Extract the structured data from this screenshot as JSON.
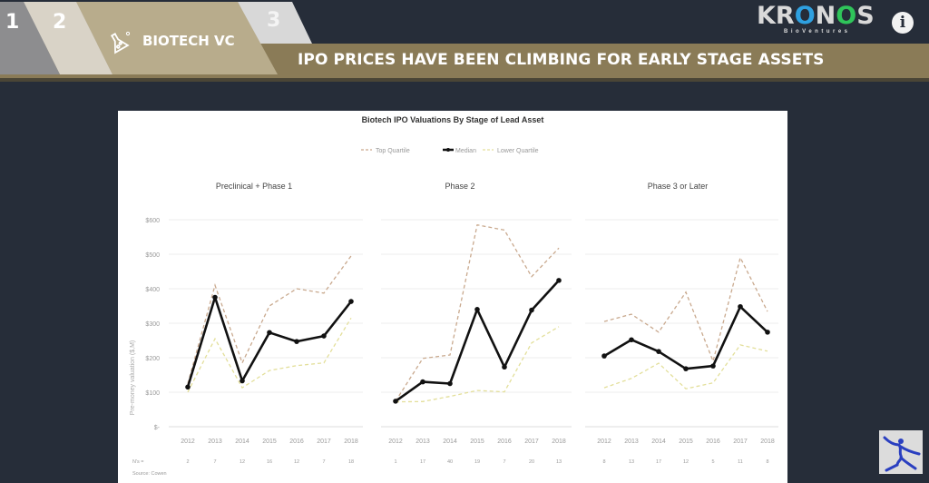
{
  "header": {
    "steps": [
      {
        "label": "1",
        "color": "#8d8d8f"
      },
      {
        "label": "2",
        "color": "#d9d3c7"
      },
      {
        "label": "BIOTECH VC",
        "color": "#b8ac8c",
        "icon": "flask-icon"
      },
      {
        "label": "3",
        "color": "#d8d8d8"
      }
    ],
    "logo": {
      "word_parts": [
        "KR",
        "O",
        "N",
        "O",
        "S"
      ],
      "word_colors": [
        "#d9d9d9",
        "#2ea0e0",
        "#d9d9d9",
        "#2fc45a",
        "#d9d9d9"
      ],
      "subtitle": "BioVentures"
    },
    "info_icon": "i",
    "banner_title": "IPO PRICES HAVE BEEN CLIMBING FOR EARLY STAGE ASSETS",
    "banner_color": "#8a7b57"
  },
  "colors": {
    "top_quartile": "#c9a98e",
    "median": "#111111",
    "lower_quartile": "#e3df9a",
    "background": "#262d39"
  },
  "chart_data": {
    "type": "line",
    "title": "Biotech IPO Valuations By Stage of Lead Asset",
    "legend": [
      "Top Quartile",
      "Median",
      "Lower Quartile"
    ],
    "legend_position": "top",
    "ylabel": "Pre-money valuation ($,M)",
    "yticks": [
      "$-",
      "$100",
      "$200",
      "$300",
      "$400",
      "$500",
      "$600"
    ],
    "ylim": [
      0,
      600
    ],
    "grid": true,
    "n_label": "N's =",
    "source": "Source: Cowen",
    "panels": [
      {
        "title": "Preclinical + Phase 1",
        "categories": [
          "2012",
          "2013",
          "2014",
          "2015",
          "2016",
          "2017",
          "2018"
        ],
        "n": [
          "2",
          "7",
          "12",
          "16",
          "12",
          "7",
          "18"
        ],
        "series": [
          {
            "name": "Top Quartile",
            "values": [
              125,
              410,
              185,
              350,
              400,
              387,
              495
            ]
          },
          {
            "name": "Median",
            "values": [
              115,
              375,
              133,
              273,
              247,
              263,
              363
            ]
          },
          {
            "name": "Lower Quartile",
            "values": [
              100,
              255,
              113,
              163,
              177,
              185,
              315
            ]
          }
        ]
      },
      {
        "title": "Phase 2",
        "categories": [
          "2012",
          "2013",
          "2014",
          "2015",
          "2016",
          "2017",
          "2018"
        ],
        "n": [
          "1",
          "17",
          "40",
          "19",
          "7",
          "20",
          "13"
        ],
        "series": [
          {
            "name": "Top Quartile",
            "values": [
              74,
              198,
              208,
              585,
              570,
              435,
              518
            ]
          },
          {
            "name": "Median",
            "values": [
              74,
              130,
              125,
              340,
              173,
              338,
              424
            ]
          },
          {
            "name": "Lower Quartile",
            "values": [
              72,
              73,
              88,
              105,
              101,
              243,
              290
            ]
          }
        ]
      },
      {
        "title": "Phase 3 or Later",
        "categories": [
          "2012",
          "2013",
          "2014",
          "2015",
          "2016",
          "2017",
          "2018"
        ],
        "n": [
          "8",
          "13",
          "17",
          "12",
          "5",
          "11",
          "8"
        ],
        "series": [
          {
            "name": "Top Quartile",
            "values": [
              305,
              326,
              274,
              390,
              190,
              490,
              334
            ]
          },
          {
            "name": "Median",
            "values": [
              205,
              252,
              218,
              168,
              176,
              348,
              274
            ]
          },
          {
            "name": "Lower Quartile",
            "values": [
              113,
              140,
              184,
              110,
              127,
              237,
              219
            ]
          }
        ]
      }
    ]
  }
}
